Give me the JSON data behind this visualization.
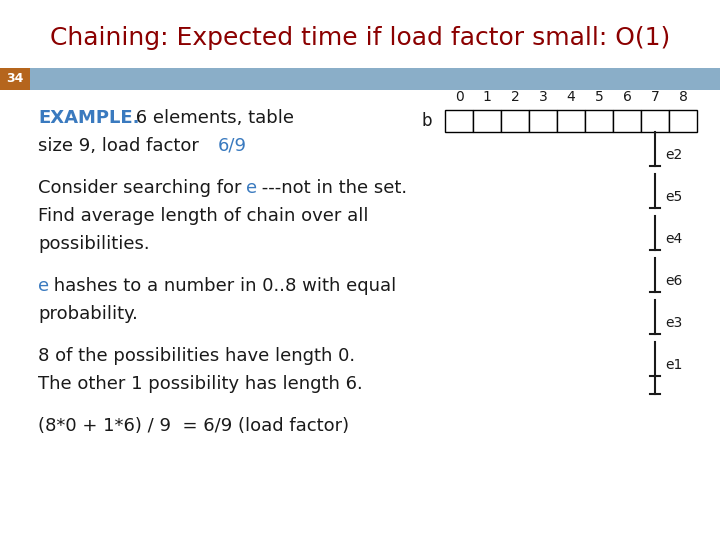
{
  "title": "Chaining: Expected time if load factor small: O(1)",
  "title_color": "#8B0000",
  "title_fontsize": 18,
  "slide_number": "34",
  "slide_number_color": "#ffffff",
  "slide_number_bg": "#b5651d",
  "header_bar_color": "#8aaec8",
  "bg_color": "#ffffff",
  "body_text_color": "#1a1a1a",
  "blue_color": "#3a7abf",
  "example_label": "EXAMPLE.",
  "example_text": " 6 elements, table",
  "example_line2": "size 9, load factor ",
  "example_fraction": "6/9",
  "para1_prefix": "Consider searching for ",
  "para1_e": "e",
  "para1_rest": " ---not in the set.",
  "para1_line2": "Find average length of chain over all",
  "para1_line3": "possibilities.",
  "para2_e": "e",
  "para2_rest": " hashes to a number in 0..8 with equal",
  "para2_line2": "probability.",
  "para3_line1": "8 of the possibilities have length 0.",
  "para3_line2": "The other 1 possibility has length 6.",
  "para4": "(8*0 + 1*6) / 9  = 6/9 (load factor)",
  "chain_elements": [
    "e2",
    "e5",
    "e4",
    "e6",
    "e3",
    "e1"
  ]
}
